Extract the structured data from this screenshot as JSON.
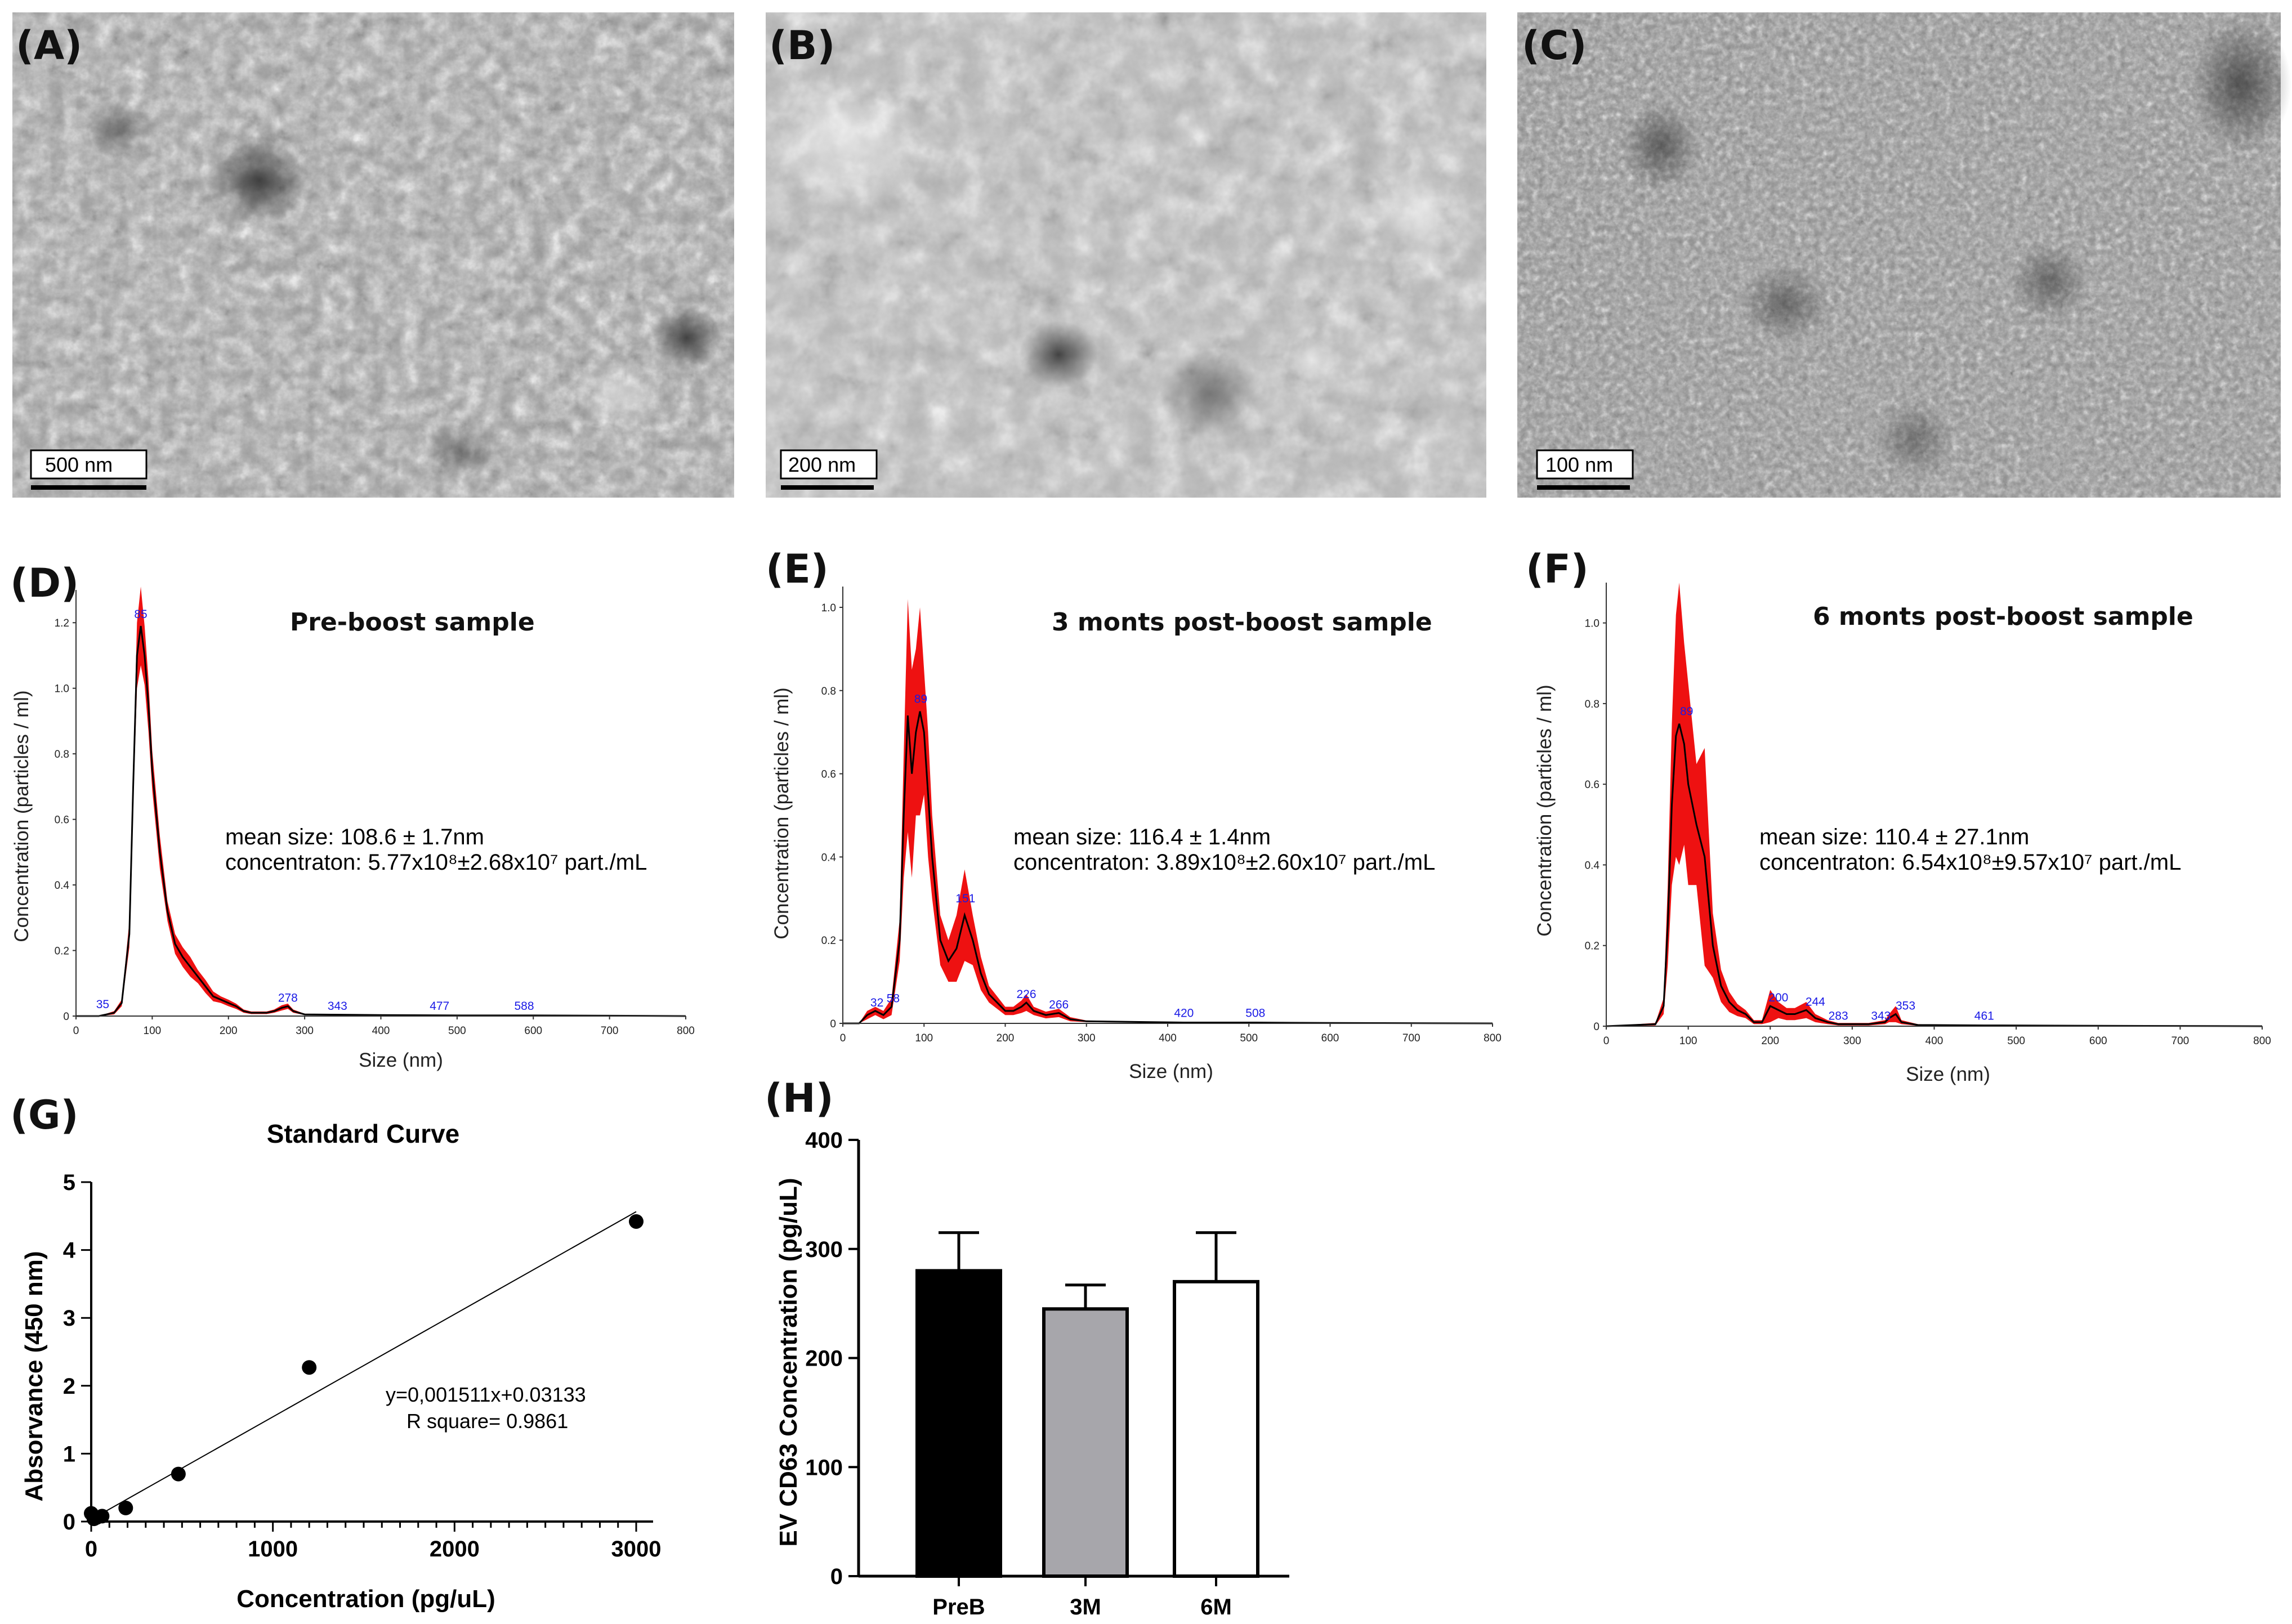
{
  "tem_panels": [
    {
      "label": "(A)",
      "scale_bar": "500 nm"
    },
    {
      "label": "(B)",
      "scale_bar": "200 nm"
    },
    {
      "label": "(C)",
      "scale_bar": "100 nm"
    }
  ],
  "colors": {
    "band": "#ee1111",
    "line": "#000000",
    "peak_label": "#1a1ae6",
    "bar_preb": "#000000",
    "bar_3m": "#a7a6ab",
    "bar_6m": "#ffffff"
  },
  "chart_data": [
    {
      "panel": "(D)",
      "type": "line",
      "title": "Pre-boost sample",
      "xlabel": "Size (nm)",
      "ylabel": "Concentration (particles / ml)",
      "xlim": [
        0,
        800
      ],
      "ylim": [
        0,
        1.3
      ],
      "xticks": [
        0,
        100,
        200,
        300,
        400,
        500,
        600,
        700,
        800
      ],
      "yticks": [
        0,
        0.2,
        0.4,
        0.6,
        0.8,
        1.0,
        1.2
      ],
      "ytick_labels": [
        "0",
        "0.2",
        "0.4",
        "0.6",
        "0.8",
        "1.0",
        "1.2"
      ],
      "x": [
        0,
        30,
        50,
        60,
        70,
        75,
        80,
        85,
        90,
        95,
        100,
        110,
        120,
        130,
        140,
        150,
        160,
        170,
        180,
        190,
        200,
        210,
        220,
        230,
        250,
        260,
        270,
        278,
        285,
        300,
        400,
        500,
        600,
        700,
        800
      ],
      "y": [
        0,
        0,
        0.01,
        0.04,
        0.25,
        0.7,
        1.1,
        1.19,
        1.1,
        0.95,
        0.75,
        0.5,
        0.32,
        0.22,
        0.18,
        0.15,
        0.12,
        0.09,
        0.06,
        0.05,
        0.04,
        0.03,
        0.015,
        0.01,
        0.01,
        0.015,
        0.025,
        0.03,
        0.015,
        0.005,
        0.003,
        0.002,
        0.002,
        0.001,
        0
      ],
      "err": [
        0,
        0,
        0.005,
        0.01,
        0.04,
        0.06,
        0.1,
        0.12,
        0.09,
        0.08,
        0.06,
        0.05,
        0.03,
        0.03,
        0.03,
        0.03,
        0.02,
        0.02,
        0.015,
        0.01,
        0.01,
        0.008,
        0.005,
        0.004,
        0.004,
        0.005,
        0.008,
        0.008,
        0.005,
        0.002,
        0.002,
        0.002,
        0.002,
        0.001,
        0
      ],
      "peaks": [
        {
          "label": "35",
          "x": 35,
          "y": 0.01
        },
        {
          "label": "85",
          "x": 85,
          "y": 1.2
        },
        {
          "label": "278",
          "x": 278,
          "y": 0.03
        },
        {
          "label": "343",
          "x": 343,
          "y": 0.005
        },
        {
          "label": "477",
          "x": 477,
          "y": 0.005
        },
        {
          "label": "588",
          "x": 588,
          "y": 0.005
        }
      ],
      "stats": {
        "mean": "mean size: 108.6 ± 1.7nm",
        "conc": "concentraton: 5.77x10⁸±2.68x10⁷ part./mL"
      }
    },
    {
      "panel": "(E)",
      "type": "line",
      "title": "3 monts post-boost sample",
      "xlabel": "Size (nm)",
      "ylabel": "Concentration (particles / ml)",
      "xlim": [
        0,
        800
      ],
      "ylim": [
        0,
        1.05
      ],
      "xticks": [
        0,
        100,
        200,
        300,
        400,
        500,
        600,
        700,
        800
      ],
      "yticks": [
        0,
        0.2,
        0.4,
        0.6,
        0.8,
        1.0
      ],
      "ytick_labels": [
        "0",
        "0.2",
        "0.4",
        "0.6",
        "0.8",
        "1.0"
      ],
      "x": [
        0,
        20,
        30,
        40,
        50,
        60,
        70,
        75,
        80,
        85,
        90,
        95,
        100,
        105,
        110,
        120,
        130,
        140,
        150,
        160,
        170,
        180,
        190,
        200,
        210,
        220,
        226,
        235,
        250,
        266,
        280,
        300,
        420,
        508,
        600,
        800
      ],
      "y": [
        0,
        0,
        0.02,
        0.03,
        0.02,
        0.04,
        0.2,
        0.5,
        0.74,
        0.6,
        0.7,
        0.75,
        0.7,
        0.55,
        0.4,
        0.2,
        0.15,
        0.18,
        0.26,
        0.2,
        0.12,
        0.07,
        0.05,
        0.03,
        0.03,
        0.04,
        0.05,
        0.03,
        0.02,
        0.025,
        0.01,
        0.005,
        0.002,
        0.002,
        0.001,
        0
      ],
      "err": [
        0,
        0,
        0.01,
        0.01,
        0.01,
        0.02,
        0.05,
        0.15,
        0.28,
        0.25,
        0.2,
        0.25,
        0.15,
        0.15,
        0.1,
        0.06,
        0.05,
        0.08,
        0.11,
        0.06,
        0.04,
        0.02,
        0.015,
        0.01,
        0.01,
        0.015,
        0.02,
        0.01,
        0.008,
        0.01,
        0.005,
        0.002,
        0.001,
        0.001,
        0.001,
        0
      ],
      "peaks": [
        {
          "label": "32",
          "x": 42,
          "y": 0.03
        },
        {
          "label": "58",
          "x": 62,
          "y": 0.04
        },
        {
          "label": "89",
          "x": 96,
          "y": 0.76
        },
        {
          "label": "151",
          "x": 151,
          "y": 0.28
        },
        {
          "label": "226",
          "x": 226,
          "y": 0.05
        },
        {
          "label": "266",
          "x": 266,
          "y": 0.025
        },
        {
          "label": "420",
          "x": 420,
          "y": 0.005
        },
        {
          "label": "508",
          "x": 508,
          "y": 0.005
        }
      ],
      "stats": {
        "mean": "mean size: 116.4 ± 1.4nm",
        "conc": "concentraton: 3.89x10⁸±2.60x10⁷ part./mL"
      }
    },
    {
      "panel": "(F)",
      "type": "line",
      "title": "6 monts post-boost sample",
      "xlabel": "Size (nm)",
      "ylabel": "Concentration (particles / ml)",
      "xlim": [
        0,
        800
      ],
      "ylim": [
        0,
        1.1
      ],
      "xticks": [
        0,
        100,
        200,
        300,
        400,
        500,
        600,
        700,
        800
      ],
      "yticks": [
        0,
        0.2,
        0.4,
        0.6,
        0.8,
        1.0
      ],
      "ytick_labels": [
        "0",
        "0.2",
        "0.4",
        "0.6",
        "0.8",
        "1.0"
      ],
      "x": [
        0,
        60,
        70,
        75,
        80,
        85,
        89,
        95,
        100,
        110,
        120,
        130,
        140,
        150,
        160,
        170,
        180,
        190,
        200,
        210,
        220,
        230,
        244,
        255,
        270,
        283,
        300,
        320,
        340,
        345,
        353,
        360,
        380,
        461,
        600,
        800
      ],
      "y": [
        0,
        0.005,
        0.05,
        0.25,
        0.55,
        0.72,
        0.75,
        0.7,
        0.6,
        0.5,
        0.42,
        0.2,
        0.1,
        0.06,
        0.04,
        0.03,
        0.01,
        0.01,
        0.05,
        0.04,
        0.03,
        0.03,
        0.04,
        0.02,
        0.01,
        0.005,
        0.005,
        0.005,
        0.01,
        0.02,
        0.03,
        0.01,
        0.003,
        0.002,
        0.001,
        0
      ],
      "err": [
        0,
        0.003,
        0.02,
        0.1,
        0.2,
        0.3,
        0.35,
        0.25,
        0.25,
        0.15,
        0.27,
        0.08,
        0.04,
        0.025,
        0.015,
        0.01,
        0.005,
        0.005,
        0.04,
        0.02,
        0.015,
        0.015,
        0.02,
        0.01,
        0.005,
        0.003,
        0.003,
        0.003,
        0.005,
        0.01,
        0.02,
        0.005,
        0.002,
        0.001,
        0.001,
        0
      ],
      "peaks": [
        {
          "label": "89",
          "x": 98,
          "y": 0.76
        },
        {
          "label": "200",
          "x": 210,
          "y": 0.05
        },
        {
          "label": "244",
          "x": 255,
          "y": 0.04
        },
        {
          "label": "283",
          "x": 283,
          "y": 0.005
        },
        {
          "label": "343",
          "x": 335,
          "y": 0.005
        },
        {
          "label": "353",
          "x": 365,
          "y": 0.03
        },
        {
          "label": "461",
          "x": 461,
          "y": 0.005
        }
      ],
      "stats": {
        "mean": "mean size: 110.4 ± 27.1nm",
        "conc": "concentraton: 6.54x10⁸±9.57x10⁷ part./mL"
      }
    },
    {
      "panel": "(G)",
      "type": "scatter",
      "title": "Standard Curve",
      "xlabel": "Concentration (pg/uL)",
      "ylabel": "Absorvance (450 nm)",
      "xlim": [
        0,
        3000
      ],
      "ylim": [
        0,
        5
      ],
      "xticks": [
        0,
        1000,
        2000,
        3000
      ],
      "yticks": [
        0,
        1,
        2,
        3,
        4,
        5
      ],
      "x": [
        0,
        15,
        30,
        60,
        190,
        480,
        1200,
        3000
      ],
      "y": [
        0.12,
        0.04,
        0.06,
        0.08,
        0.2,
        0.7,
        2.27,
        4.42
      ],
      "fit": {
        "slope": 0.001511,
        "intercept": 0.03133,
        "x_range": [
          0,
          3000
        ]
      },
      "annotation": {
        "equation": "y=0,001511x+0.03133",
        "r2": "R square= 0.9861"
      }
    },
    {
      "panel": "(H)",
      "type": "bar",
      "categories": [
        "PreB",
        "3M",
        "6M"
      ],
      "values": [
        280,
        245,
        270
      ],
      "errors": [
        35,
        22,
        45
      ],
      "ylabel": "EV CD63 Concentration (pg/uL)",
      "ylim": [
        0,
        400
      ],
      "yticks": [
        0,
        100,
        200,
        300,
        400
      ]
    }
  ]
}
